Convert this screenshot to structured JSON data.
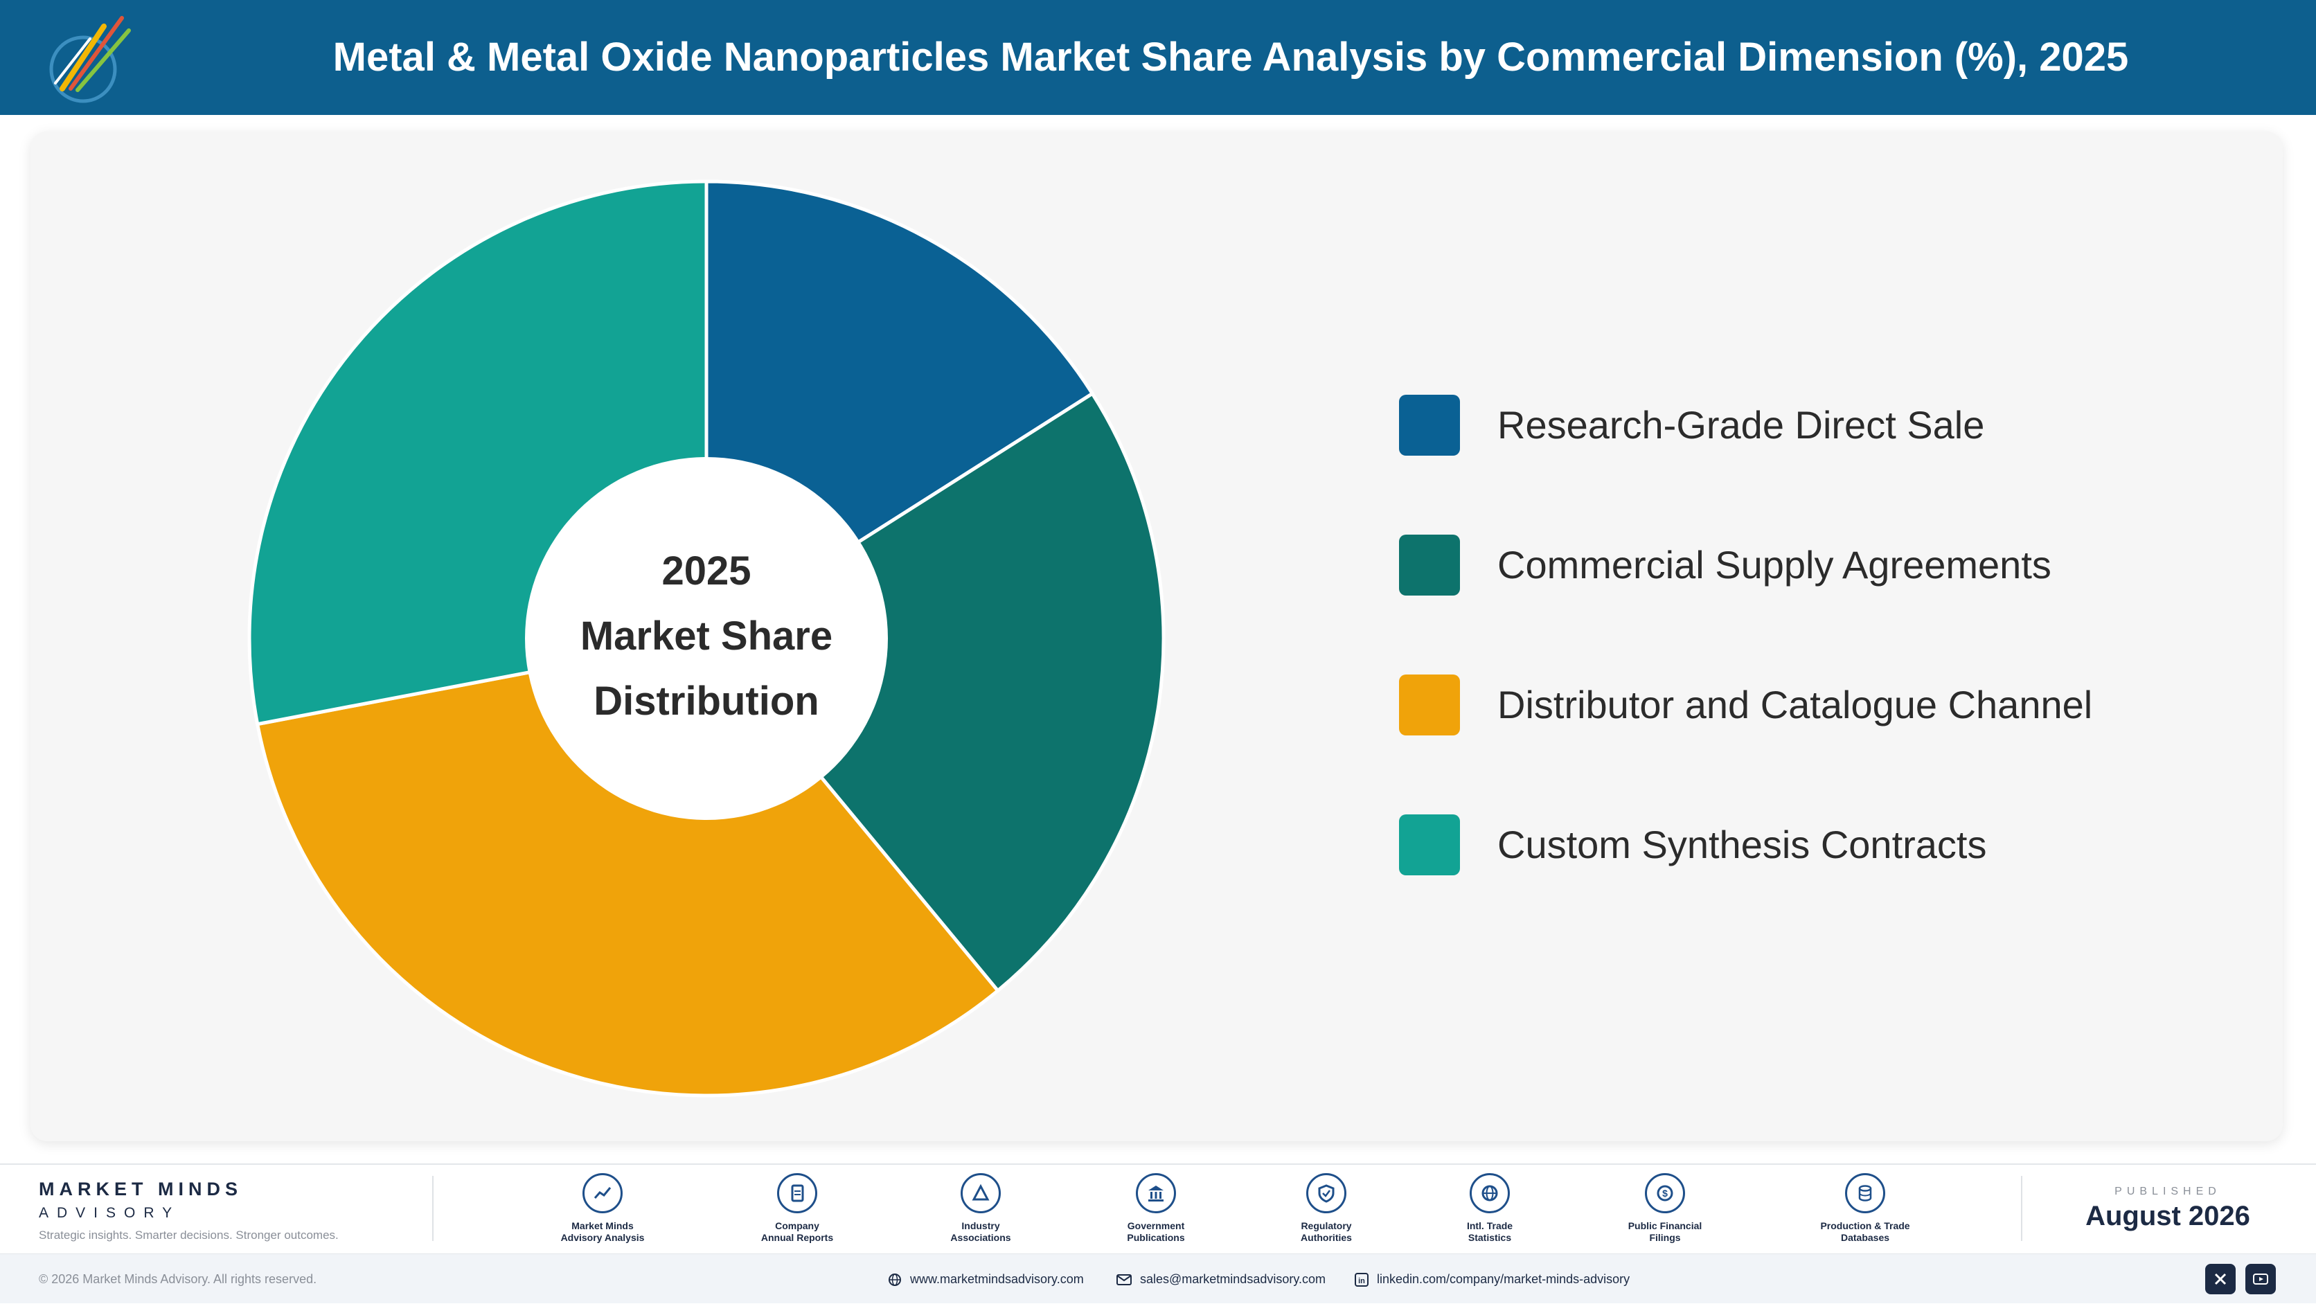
{
  "header": {
    "title": "Metal & Metal Oxide Nanoparticles Market Share Analysis by Commercial Dimension (%), 2025",
    "logo_icon": "company-logo-icon"
  },
  "chart_data": {
    "type": "pie",
    "style": "donut",
    "center_label": [
      "2025",
      "Market Share",
      "Distribution"
    ],
    "categories": [
      "Research-Grade Direct Sale",
      "Commercial Supply Agreements",
      "Distributor and Catalogue Channel",
      "Custom Synthesis Contracts"
    ],
    "values": [
      16,
      23,
      33,
      28
    ],
    "colors": [
      "#0a6194",
      "#0d736c",
      "#f0a30a",
      "#12a394"
    ],
    "legend_position": "right"
  },
  "footer": {
    "brand_name": "MARKET MINDS",
    "brand_sub": "ADVISORY",
    "brand_tagline": "Strategic insights. Smarter decisions. Stronger outcomes.",
    "sources": [
      {
        "line1": "Market Minds",
        "line2": "Advisory Analysis",
        "icon": "trend-line-icon"
      },
      {
        "line1": "Company",
        "line2": "Annual Reports",
        "icon": "document-icon"
      },
      {
        "line1": "Industry",
        "line2": "Associations",
        "icon": "network-icon"
      },
      {
        "line1": "Government",
        "line2": "Publications",
        "icon": "government-building-icon"
      },
      {
        "line1": "Regulatory",
        "line2": "Authorities",
        "icon": "shield-check-icon"
      },
      {
        "line1": "Intl. Trade",
        "line2": "Statistics",
        "icon": "globe-icon"
      },
      {
        "line1": "Public Financial",
        "line2": "Filings",
        "icon": "dollar-coin-icon"
      },
      {
        "line1": "Production & Trade",
        "line2": "Databases",
        "icon": "database-icon"
      }
    ],
    "published_label": "PUBLISHED",
    "published_date": "August 2026"
  },
  "bottom_bar": {
    "copyright": "© 2026 Market Minds Advisory. All rights reserved.",
    "website": "www.marketmindsadvisory.com",
    "email": "sales@marketmindsadvisory.com",
    "linkedin": "linkedin.com/company/market-minds-advisory",
    "social_icons": [
      "x-icon",
      "youtube-icon"
    ]
  }
}
